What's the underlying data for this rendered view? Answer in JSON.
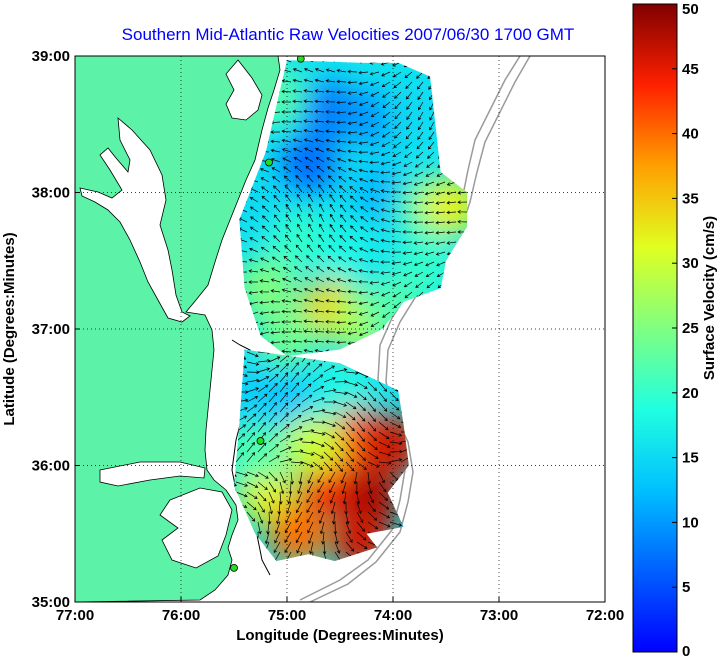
{
  "title": "Southern Mid-Atlantic Raw Velocities 2007/06/30 1700 GMT",
  "x_axis": {
    "label": "Longitude (Degrees:Minutes)",
    "ticks": [
      {
        "value": -77,
        "label": "77:00"
      },
      {
        "value": -76,
        "label": "76:00"
      },
      {
        "value": -75,
        "label": "75:00"
      },
      {
        "value": -74,
        "label": "74:00"
      },
      {
        "value": -73,
        "label": "73:00"
      },
      {
        "value": -72,
        "label": "72:00"
      }
    ],
    "range": [
      -77,
      -72
    ]
  },
  "y_axis": {
    "label": "Latitude (Degrees:Minutes)",
    "ticks": [
      {
        "value": 35,
        "label": "35:00"
      },
      {
        "value": 36,
        "label": "36:00"
      },
      {
        "value": 37,
        "label": "37:00"
      },
      {
        "value": 38,
        "label": "38:00"
      },
      {
        "value": 39,
        "label": "39:00"
      }
    ],
    "range": [
      35,
      39
    ]
  },
  "colorbar": {
    "label": "Surface Velocity (cm/s)",
    "range": [
      0,
      50
    ],
    "ticks": [
      {
        "value": 0,
        "label": "0"
      },
      {
        "value": 5,
        "label": "5"
      },
      {
        "value": 10,
        "label": "10"
      },
      {
        "value": 15,
        "label": "15"
      },
      {
        "value": 20,
        "label": "20"
      },
      {
        "value": 25,
        "label": "25"
      },
      {
        "value": 30,
        "label": "30"
      },
      {
        "value": 35,
        "label": "35"
      },
      {
        "value": 40,
        "label": "40"
      },
      {
        "value": 45,
        "label": "45"
      },
      {
        "value": 50,
        "label": "50"
      }
    ]
  },
  "colors": {
    "land": "#5cf3a8",
    "water": "#ffffff",
    "grid": "#000000",
    "bathymetry": "#9a9a9a",
    "station": "#22dd22",
    "title": "#0000ff"
  },
  "stations": [
    {
      "lon": -74.87,
      "lat": 38.98
    },
    {
      "lon": -75.17,
      "lat": 38.22
    },
    {
      "lon": -75.25,
      "lat": 36.18
    },
    {
      "lon": -75.5,
      "lat": 35.25
    }
  ],
  "velocity_regions": [
    {
      "name": "north-field",
      "points": [
        [
          -75.0,
          38.97
        ],
        [
          -74.3,
          38.95
        ],
        [
          -73.95,
          38.95
        ],
        [
          -73.65,
          38.85
        ],
        [
          -73.6,
          38.5
        ],
        [
          -73.55,
          38.15
        ],
        [
          -73.3,
          38.0
        ],
        [
          -73.3,
          37.75
        ],
        [
          -73.5,
          37.5
        ],
        [
          -73.55,
          37.3
        ],
        [
          -73.9,
          37.2
        ],
        [
          -74.1,
          37.0
        ],
        [
          -74.5,
          36.85
        ],
        [
          -75.0,
          36.8
        ],
        [
          -75.25,
          36.95
        ],
        [
          -75.4,
          37.3
        ],
        [
          -75.45,
          37.8
        ],
        [
          -75.2,
          38.3
        ],
        [
          -75.0,
          38.97
        ]
      ]
    },
    {
      "name": "south-field",
      "points": [
        [
          -75.4,
          36.85
        ],
        [
          -74.5,
          36.75
        ],
        [
          -73.95,
          36.55
        ],
        [
          -73.9,
          36.3
        ],
        [
          -73.85,
          36.0
        ],
        [
          -74.05,
          35.8
        ],
        [
          -73.9,
          35.55
        ],
        [
          -74.25,
          35.5
        ],
        [
          -74.15,
          35.4
        ],
        [
          -74.55,
          35.3
        ],
        [
          -74.8,
          35.35
        ],
        [
          -75.1,
          35.3
        ],
        [
          -75.3,
          35.5
        ],
        [
          -75.5,
          35.85
        ],
        [
          -75.45,
          36.3
        ],
        [
          -75.4,
          36.85
        ]
      ]
    }
  ],
  "speed_samples": [
    {
      "lon": -74.6,
      "lat": 38.6,
      "speed": 8
    },
    {
      "lon": -74.8,
      "lat": 38.2,
      "speed": 7
    },
    {
      "lon": -74.2,
      "lat": 38.55,
      "speed": 10
    },
    {
      "lon": -73.8,
      "lat": 38.6,
      "speed": 15
    },
    {
      "lon": -74.1,
      "lat": 38.0,
      "speed": 12
    },
    {
      "lon": -73.7,
      "lat": 37.9,
      "speed": 22
    },
    {
      "lon": -73.45,
      "lat": 37.9,
      "speed": 32
    },
    {
      "lon": -75.1,
      "lat": 38.7,
      "speed": 22
    },
    {
      "lon": -75.2,
      "lat": 37.9,
      "speed": 15
    },
    {
      "lon": -74.9,
      "lat": 37.65,
      "speed": 20
    },
    {
      "lon": -74.4,
      "lat": 37.55,
      "speed": 18
    },
    {
      "lon": -74.0,
      "lat": 37.5,
      "speed": 16
    },
    {
      "lon": -73.7,
      "lat": 37.45,
      "speed": 20
    },
    {
      "lon": -75.2,
      "lat": 37.3,
      "speed": 25
    },
    {
      "lon": -74.6,
      "lat": 37.15,
      "speed": 34
    },
    {
      "lon": -74.3,
      "lat": 37.05,
      "speed": 28
    },
    {
      "lon": -74.0,
      "lat": 37.15,
      "speed": 22
    },
    {
      "lon": -75.0,
      "lat": 36.95,
      "speed": 24
    },
    {
      "lon": -75.3,
      "lat": 36.5,
      "speed": 14
    },
    {
      "lon": -74.9,
      "lat": 36.45,
      "speed": 13
    },
    {
      "lon": -74.5,
      "lat": 36.55,
      "speed": 18
    },
    {
      "lon": -74.3,
      "lat": 36.2,
      "speed": 42
    },
    {
      "lon": -74.0,
      "lat": 36.15,
      "speed": 46
    },
    {
      "lon": -74.6,
      "lat": 35.85,
      "speed": 44
    },
    {
      "lon": -74.2,
      "lat": 35.75,
      "speed": 48
    },
    {
      "lon": -74.3,
      "lat": 35.45,
      "speed": 46
    },
    {
      "lon": -75.2,
      "lat": 35.8,
      "speed": 32
    },
    {
      "lon": -74.9,
      "lat": 35.5,
      "speed": 40
    },
    {
      "lon": -75.3,
      "lat": 36.1,
      "speed": 22
    },
    {
      "lon": -74.75,
      "lat": 36.15,
      "speed": 30
    }
  ]
}
